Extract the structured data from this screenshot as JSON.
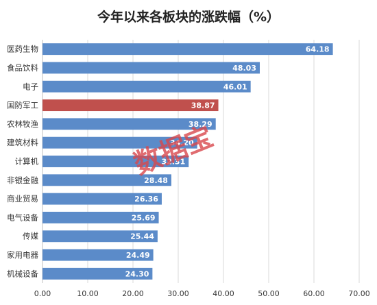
{
  "chart_data": {
    "type": "bar",
    "orientation": "horizontal",
    "title": "今年以来各板块的涨跌幅（%）",
    "categories": [
      "医药生物",
      "食品饮料",
      "电子",
      "国防军工",
      "农林牧渔",
      "建筑材料",
      "计算机",
      "非银金融",
      "商业贸易",
      "电气设备",
      "传媒",
      "家用电器",
      "机械设备"
    ],
    "values": [
      64.18,
      48.03,
      46.01,
      38.87,
      38.29,
      34.2,
      32.31,
      28.48,
      26.36,
      25.69,
      25.44,
      24.49,
      24.3
    ],
    "value_labels": [
      "64.18",
      "48.03",
      "46.01",
      "38.87",
      "38.29",
      "34.20",
      "32.31",
      "28.48",
      "26.36",
      "25.69",
      "25.44",
      "24.49",
      "24.30"
    ],
    "highlight_index": 3,
    "xlim": [
      0,
      70
    ],
    "x_ticks": [
      "0.00",
      "10.00",
      "20.00",
      "30.00",
      "40.00",
      "50.00",
      "60.00",
      "70.00"
    ],
    "grid": true,
    "colors": {
      "bar": "#5b8bc9",
      "highlight": "#c0504d",
      "grid": "#d9d9d9"
    },
    "watermark": "数据宝"
  }
}
